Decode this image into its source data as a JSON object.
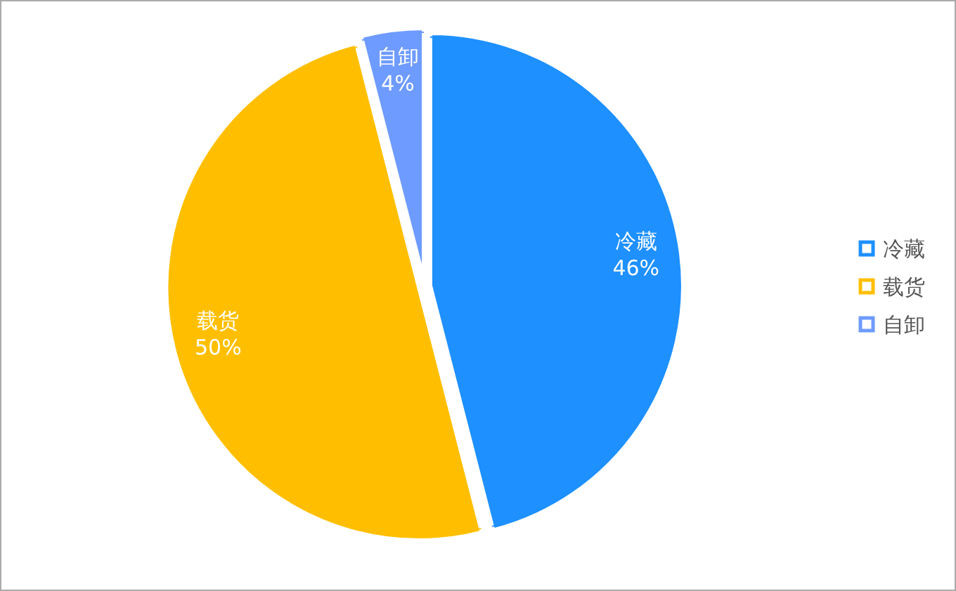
{
  "chart_data": {
    "type": "pie",
    "categories": [
      "冷藏",
      "载货",
      "自卸"
    ],
    "values": [
      46,
      50,
      4
    ],
    "colors": [
      "#1e90ff",
      "#ffbf00",
      "#6e9bff"
    ],
    "value_labels": [
      "46%",
      "50%",
      "4%"
    ],
    "legend": "right"
  }
}
